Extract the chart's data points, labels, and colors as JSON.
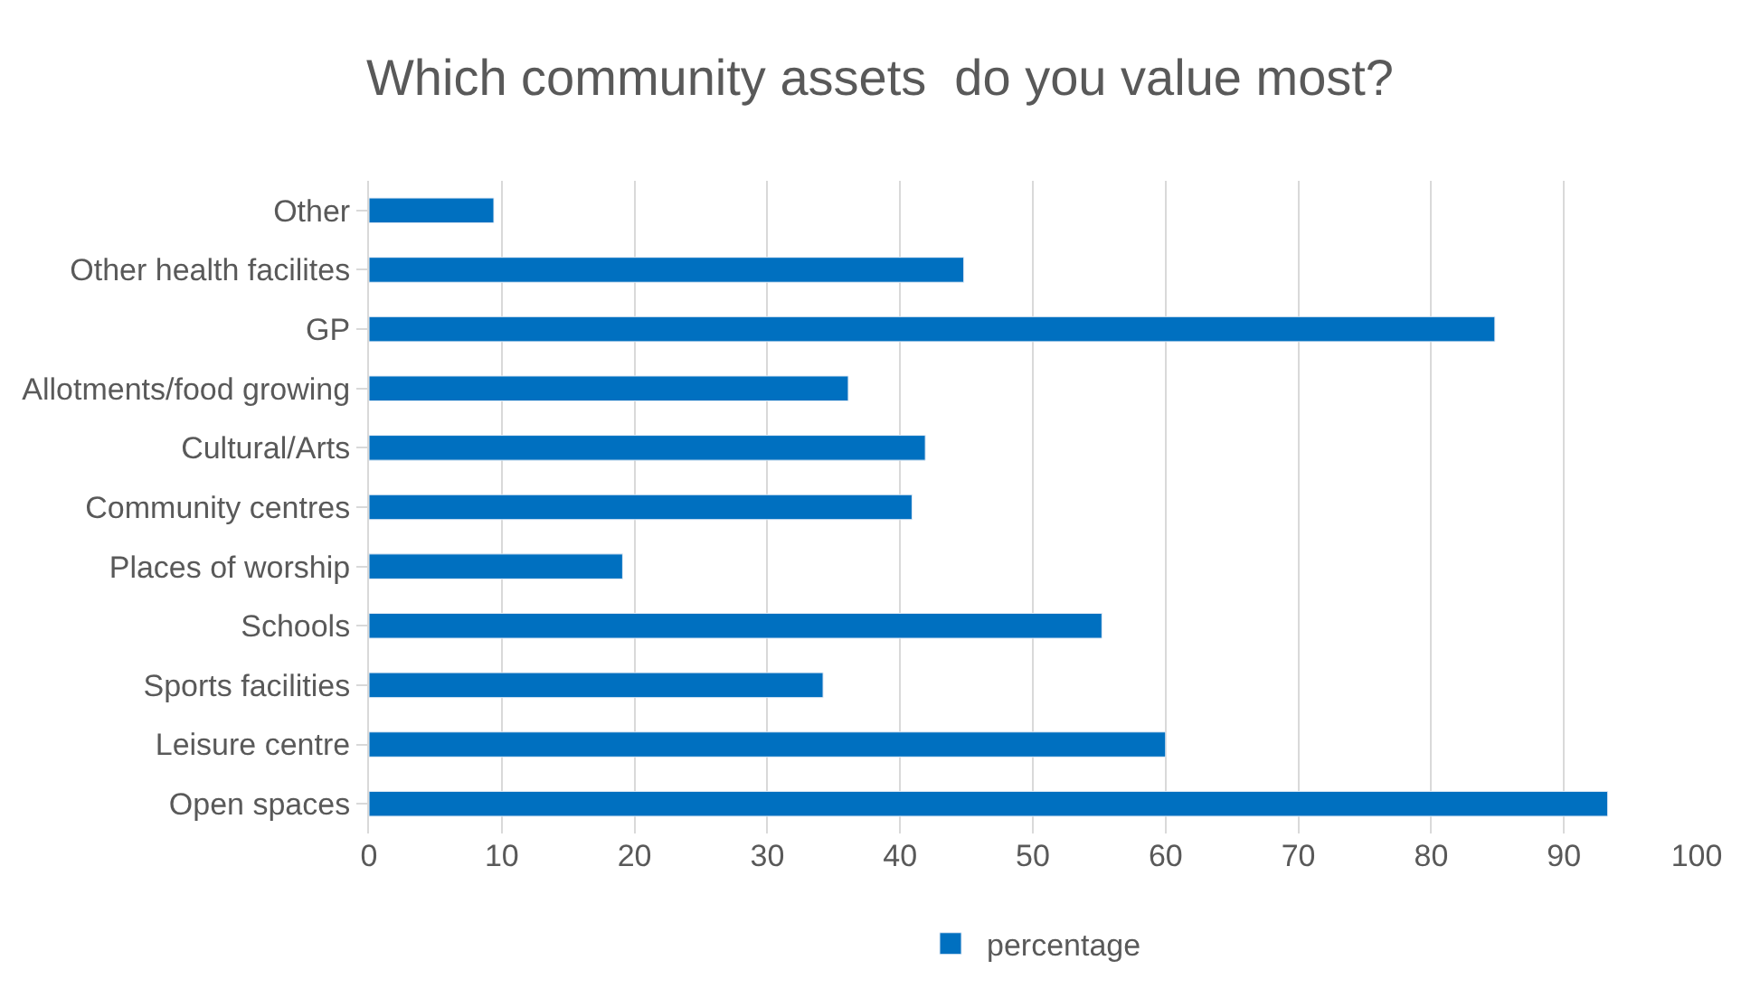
{
  "chart_data": {
    "type": "bar",
    "orientation": "horizontal",
    "title": "Which community assets  do you value most?",
    "categories": [
      "Other",
      "Other health facilites",
      "GP",
      "Allotments/food growing",
      "Cultural/Arts",
      "Community centres",
      "Places of worship",
      "Schools",
      "Sports facilities",
      "Leisure centre",
      "Open spaces"
    ],
    "series": [
      {
        "name": "percentage",
        "color": "#0070c0",
        "values": [
          9.4,
          44.8,
          84.8,
          36.1,
          41.9,
          40.9,
          19.1,
          55.2,
          34.2,
          60,
          93.3
        ]
      }
    ],
    "xlim": [
      0,
      100
    ],
    "xticks": [
      0,
      10,
      20,
      30,
      40,
      50,
      60,
      70,
      80,
      90,
      100
    ],
    "grid": "x",
    "legend": "bottom"
  }
}
